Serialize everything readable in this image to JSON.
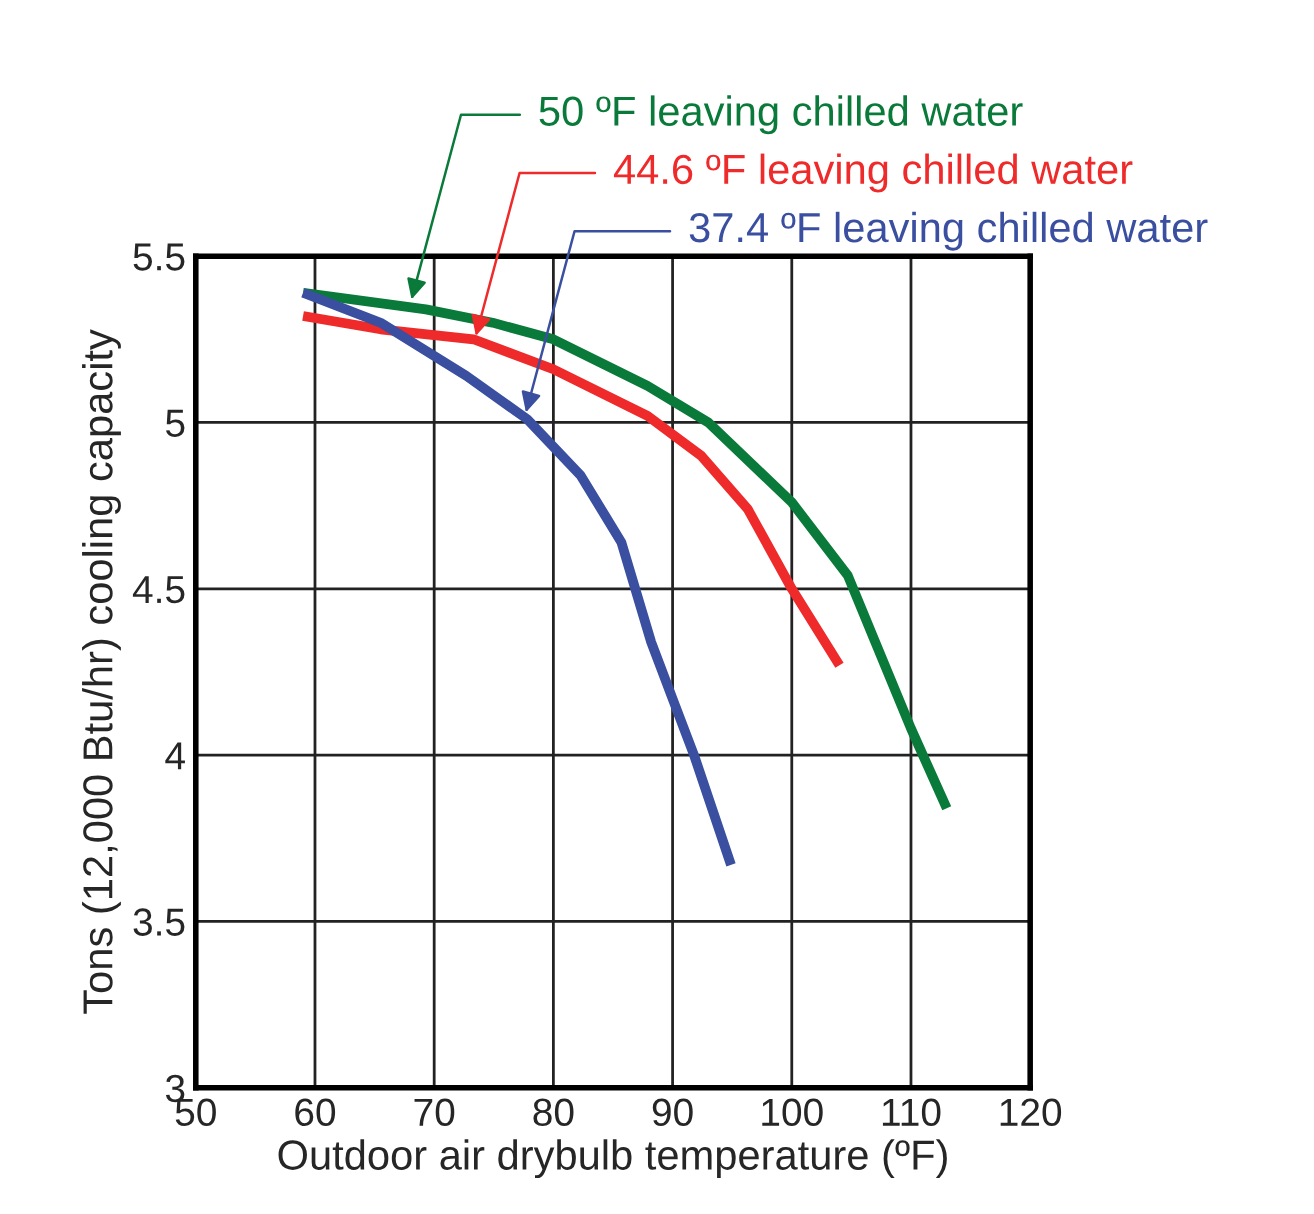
{
  "chart_data": {
    "type": "line",
    "xlabel": "Outdoor air drybulb temperature (ºF)",
    "ylabel": "Tons (12,000 Btu/hr) cooling capacity",
    "xlim": [
      50,
      120
    ],
    "xticks": [
      50,
      60,
      70,
      80,
      90,
      100,
      110,
      120
    ],
    "ylim": [
      3,
      5.5
    ],
    "yticks": [
      3,
      3.5,
      4,
      4.5,
      5,
      5.5
    ],
    "grid": true,
    "legend": false,
    "line_style": "solid",
    "marker": "none",
    "series": [
      {
        "color": "#0a7a3a",
        "x": [
          59,
          69.3,
          74.9,
          80,
          87.9,
          93,
          100,
          104.7,
          107,
          110,
          113
        ],
        "values": [
          5.39,
          5.34,
          5.3,
          5.25,
          5.11,
          5.0,
          4.76,
          4.54,
          4.34,
          4.08,
          3.84
        ]
      },
      {
        "color": "#ee2a2a",
        "x": [
          59,
          65.5,
          73.3,
          80,
          87.9,
          92.4,
          96.3,
          100,
          104
        ],
        "values": [
          5.32,
          5.28,
          5.25,
          5.16,
          5.02,
          4.9,
          4.74,
          4.5,
          4.27
        ]
      },
      {
        "color": "#3a4fa0",
        "x": [
          59,
          65.5,
          72.7,
          77.8,
          82.3,
          85.7,
          88.2,
          90.1,
          91.8,
          94.9
        ],
        "values": [
          5.39,
          5.3,
          5.14,
          5.01,
          4.84,
          4.64,
          4.34,
          4.16,
          4.0,
          3.67
        ]
      }
    ],
    "annotations": [
      {
        "text": "50 ºF leaving chilled water",
        "x": 68.1,
        "y": 5.37
      },
      {
        "text": "44.6 ºF leaving chilled water",
        "x": 73.5,
        "y": 5.26
      },
      {
        "text": "37.4 ºF leaving chilled water",
        "x": 77.7,
        "y": 5.03
      }
    ]
  }
}
